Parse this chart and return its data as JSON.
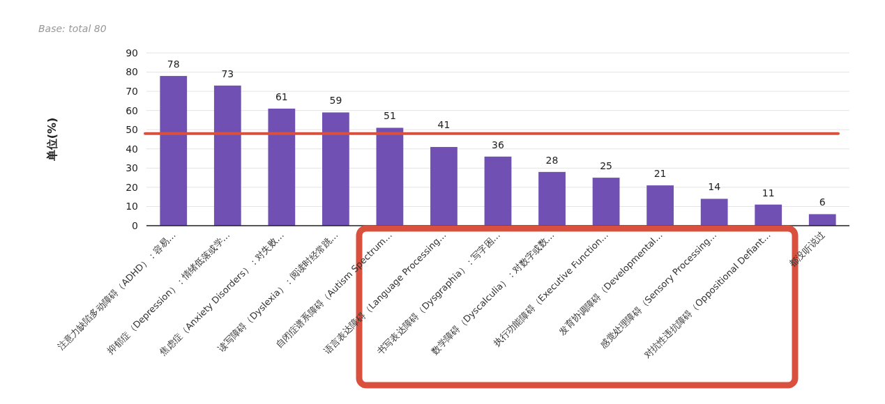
{
  "chart_data": {
    "type": "bar",
    "ylabel": "单位(%)",
    "annotations": [
      "Base: total 80"
    ],
    "categories": [
      "注意力缺陷多动障碍（ADHD）：容易…",
      "抑郁症（Depression）：情绪低落或学…",
      "焦虑症（Anxiety Disorders）：对失败…",
      "读写障碍（Dyslexia）：阅读时经常跳…",
      "自闭症谱系障碍（Autism Spectrum…",
      "语言表达障碍（Language Processing…",
      "书写表达障碍（Dysgraphia）：写字困…",
      "数学障碍（Dyscalculia）：对数字或数…",
      "执行功能障碍（Executive Function…",
      "发育协调障碍（Developmental…",
      "感觉处理障碍（Sensory Processing…",
      "对抗性违抗障碍（Oppositional Defiant…",
      "都没听说过"
    ],
    "values": [
      78,
      73,
      61,
      59,
      51,
      41,
      36,
      28,
      25,
      21,
      14,
      11,
      6
    ],
    "color": "#7150b4",
    "ylim": [
      0,
      90
    ],
    "yticks": [
      0,
      10,
      20,
      30,
      40,
      50,
      60,
      70,
      80,
      90
    ],
    "grid": "y",
    "data_labels": true,
    "ref_lines": [
      {
        "axis": "y",
        "value": 48,
        "color": "#d9503f"
      }
    ]
  }
}
